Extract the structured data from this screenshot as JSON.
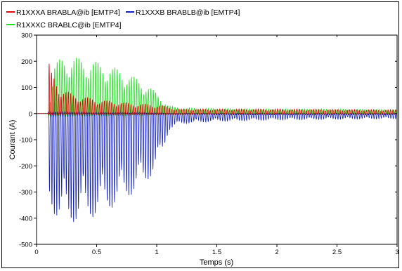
{
  "chart_data": {
    "type": "line",
    "title": "",
    "xlabel": "Temps (s)",
    "ylabel": "Courant (A)",
    "xlim": [
      0,
      3
    ],
    "ylim": [
      -500,
      300
    ],
    "xticks": [
      "0",
      "0.5",
      "1",
      "1.5",
      "2",
      "2.5",
      "3"
    ],
    "yticks": [
      "300",
      "200",
      "100",
      "0",
      "-100",
      "-200",
      "-300",
      "-400",
      "-500"
    ],
    "grid": false,
    "legend_position": "top-left",
    "series": [
      {
        "name": "R1XXXA BRABLA@ib [EMTP4]",
        "color": "#e00000",
        "envelope": {
          "t": [
            0,
            0.095,
            0.1,
            0.12,
            0.15,
            0.2,
            0.3,
            0.5,
            0.8,
            1.0,
            1.1,
            1.2,
            1.5,
            2.0,
            2.5,
            3.0
          ],
          "upper": [
            0,
            0,
            205,
            160,
            140,
            100,
            75,
            55,
            40,
            35,
            25,
            18,
            18,
            18,
            16,
            15
          ],
          "lower": [
            0,
            0,
            -10,
            -10,
            -8,
            -5,
            -5,
            -5,
            -5,
            -5,
            -5,
            -5,
            -3,
            -3,
            -3,
            -3
          ]
        }
      },
      {
        "name": "R1XXXB BRABLB@ib [EMTP4]",
        "color": "#1020c0",
        "envelope": {
          "t": [
            0,
            0.095,
            0.1,
            0.15,
            0.2,
            0.25,
            0.3,
            0.5,
            0.7,
            0.9,
            1.0,
            1.05,
            1.1,
            1.2,
            1.5,
            2.0,
            2.5,
            3.0
          ],
          "upper": [
            0,
            0,
            10,
            10,
            8,
            8,
            8,
            5,
            5,
            5,
            3,
            3,
            0,
            0,
            -5,
            -5,
            -5,
            -5
          ],
          "lower": [
            0,
            0,
            -345,
            -390,
            -415,
            -425,
            -420,
            -395,
            -345,
            -275,
            -210,
            -150,
            -65,
            -40,
            -30,
            -25,
            -22,
            -20
          ]
        }
      },
      {
        "name": "R1XXXC BRABLC@ib [EMTP4]",
        "color": "#20e020",
        "envelope": {
          "t": [
            0,
            0.095,
            0.1,
            0.15,
            0.2,
            0.25,
            0.3,
            0.5,
            0.7,
            0.9,
            1.0,
            1.05,
            1.1,
            1.2,
            1.5,
            2.0,
            2.5,
            3.0
          ],
          "upper": [
            0,
            0,
            40,
            190,
            215,
            222,
            220,
            200,
            170,
            120,
            80,
            55,
            30,
            22,
            20,
            18,
            18,
            16
          ],
          "lower": [
            0,
            0,
            -10,
            -15,
            -15,
            -12,
            -12,
            -10,
            -10,
            -8,
            -8,
            -6,
            -5,
            -5,
            -5,
            -5,
            -5,
            -5
          ]
        }
      }
    ]
  }
}
